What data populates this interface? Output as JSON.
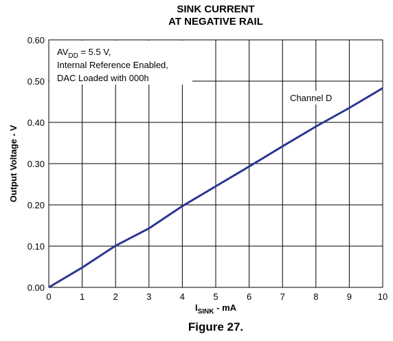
{
  "chart_data": {
    "type": "line",
    "title_lines": [
      "SINK CURRENT",
      "AT NEGATIVE RAIL"
    ],
    "xlabel_main": "I",
    "xlabel_sub": "SINK",
    "xlabel_rest": " - mA",
    "ylabel": "Output Voltage - V",
    "xlim": [
      0,
      10
    ],
    "ylim": [
      0.0,
      0.6
    ],
    "x_ticks": [
      "0",
      "1",
      "2",
      "3",
      "4",
      "5",
      "6",
      "7",
      "8",
      "9",
      "10"
    ],
    "y_ticks": [
      "0.00",
      "0.10",
      "0.20",
      "0.30",
      "0.40",
      "0.50",
      "0.60"
    ],
    "grid": true,
    "annotation": {
      "line1_main": "AV",
      "line1_sub": "DD",
      "line1_rest": " = 5.5 V,",
      "line2": "Internal Reference Enabled,",
      "line3": "DAC Loaded with 000h"
    },
    "series": [
      {
        "name": "Channel D",
        "color": "#2b3590",
        "x": [
          0,
          1,
          2,
          3,
          4,
          5,
          6,
          7,
          8,
          9,
          10
        ],
        "y": [
          0.0,
          0.048,
          0.101,
          0.143,
          0.197,
          0.245,
          0.293,
          0.342,
          0.39,
          0.435,
          0.483
        ]
      }
    ]
  },
  "caption": "Figure 27."
}
